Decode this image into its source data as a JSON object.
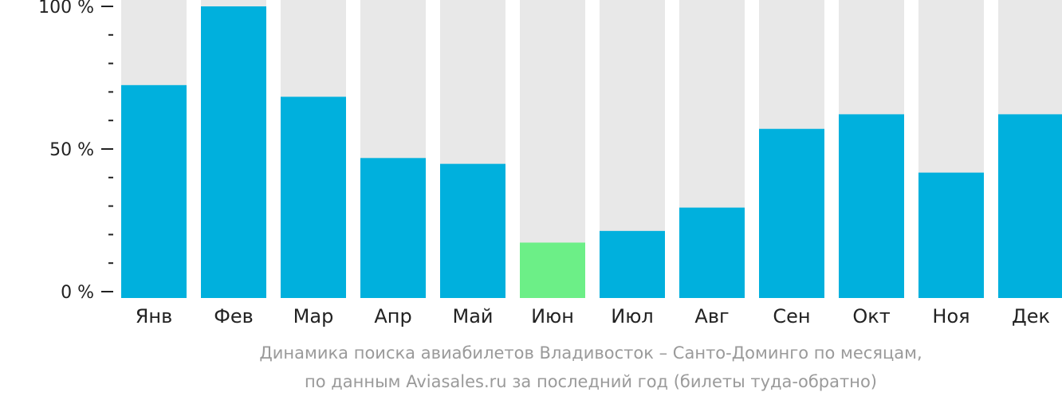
{
  "chart_data": {
    "type": "bar",
    "categories": [
      "Янв",
      "Фев",
      "Мар",
      "Апр",
      "Май",
      "Июн",
      "Июл",
      "Авг",
      "Сен",
      "Окт",
      "Ноя",
      "Дек"
    ],
    "values": [
      73,
      100,
      69,
      48,
      46,
      19,
      23,
      31,
      58,
      63,
      43,
      63
    ],
    "highlight_index": 5,
    "ylim": [
      0,
      100
    ],
    "yticks": [
      "0 %",
      "50 %",
      "100 %"
    ],
    "ytick_values": [
      0,
      50,
      100
    ],
    "minor_tick_step": 10,
    "colors": {
      "bar": "#00b0dd",
      "highlight": "#6cef87",
      "track": "#e8e8e8",
      "axis": "#222222"
    },
    "caption_line1": "Динамика поиска авиабилетов Владивосток – Санто-Доминго по месяцам,",
    "caption_line2": "по данным Aviasales.ru за последний год (билеты туда-обратно)"
  }
}
